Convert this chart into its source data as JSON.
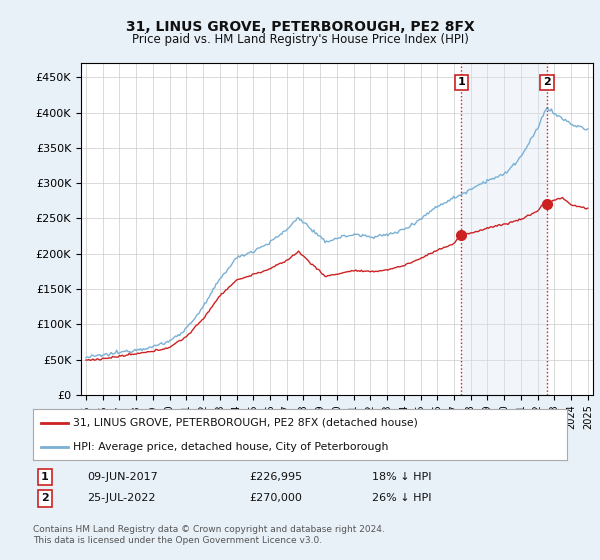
{
  "title": "31, LINUS GROVE, PETERBOROUGH, PE2 8FX",
  "subtitle": "Price paid vs. HM Land Registry's House Price Index (HPI)",
  "ylabel_ticks": [
    "£0",
    "£50K",
    "£100K",
    "£150K",
    "£200K",
    "£250K",
    "£300K",
    "£350K",
    "£400K",
    "£450K"
  ],
  "ytick_values": [
    0,
    50000,
    100000,
    150000,
    200000,
    250000,
    300000,
    350000,
    400000,
    450000
  ],
  "ylim": [
    0,
    470000
  ],
  "xlim_start": 1994.7,
  "xlim_end": 2025.3,
  "hpi_color": "#7ab0d4",
  "price_color": "#cc2222",
  "vline_color": "#cc2222",
  "shade_color": "#dce8f5",
  "background_color": "#e8f0f8",
  "plot_bg_color": "#ffffff",
  "legend_label_price": "31, LINUS GROVE, PETERBOROUGH, PE2 8FX (detached house)",
  "legend_label_hpi": "HPI: Average price, detached house, City of Peterborough",
  "sale1_date": 2017.44,
  "sale1_price": 226995,
  "sale2_date": 2022.56,
  "sale2_price": 270000,
  "footer": "Contains HM Land Registry data © Crown copyright and database right 2024.\nThis data is licensed under the Open Government Licence v3.0.",
  "xtick_years": [
    1995,
    1996,
    1997,
    1998,
    1999,
    2000,
    2001,
    2002,
    2003,
    2004,
    2005,
    2006,
    2007,
    2008,
    2009,
    2010,
    2011,
    2012,
    2013,
    2014,
    2015,
    2016,
    2017,
    2018,
    2019,
    2020,
    2021,
    2022,
    2023,
    2024,
    2025
  ]
}
